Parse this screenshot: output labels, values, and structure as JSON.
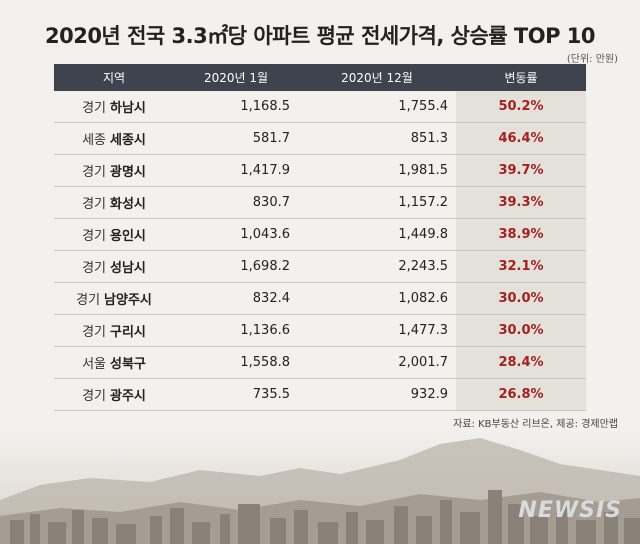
{
  "title": "2020년 전국 3.3㎡당 아파트 평균 전세가격, 상승률 TOP 10",
  "unit": "(단위: 만원)",
  "headers": [
    "지역",
    "2020년 1월",
    "2020년 12월",
    "변동률"
  ],
  "rows": [
    {
      "province": "경기",
      "city": "하남시",
      "jan": "1,168.5",
      "dec": "1,755.4",
      "change": "50.2%"
    },
    {
      "province": "세종",
      "city": "세종시",
      "jan": "581.7",
      "dec": "851.3",
      "change": "46.4%"
    },
    {
      "province": "경기",
      "city": "광명시",
      "jan": "1,417.9",
      "dec": "1,981.5",
      "change": "39.7%"
    },
    {
      "province": "경기",
      "city": "화성시",
      "jan": "830.7",
      "dec": "1,157.2",
      "change": "39.3%"
    },
    {
      "province": "경기",
      "city": "용인시",
      "jan": "1,043.6",
      "dec": "1,449.8",
      "change": "38.9%"
    },
    {
      "province": "경기",
      "city": "성남시",
      "jan": "1,698.2",
      "dec": "2,243.5",
      "change": "32.1%"
    },
    {
      "province": "경기",
      "city": "남양주시",
      "jan": "832.4",
      "dec": "1,082.6",
      "change": "30.0%"
    },
    {
      "province": "경기",
      "city": "구리시",
      "jan": "1,136.6",
      "dec": "1,477.3",
      "change": "30.0%"
    },
    {
      "province": "서울",
      "city": "성북구",
      "jan": "1,558.8",
      "dec": "2,001.7",
      "change": "28.4%"
    },
    {
      "province": "경기",
      "city": "광주시",
      "jan": "735.5",
      "dec": "932.9",
      "change": "26.8%"
    }
  ],
  "source": "자료: KB부동산 리브온, 제공: 경제만랩",
  "logo_text": "NEWSIS",
  "colors": {
    "header_bg": "#3f434e",
    "change_text": "#a52020",
    "change_bg": "#e4e0da"
  }
}
